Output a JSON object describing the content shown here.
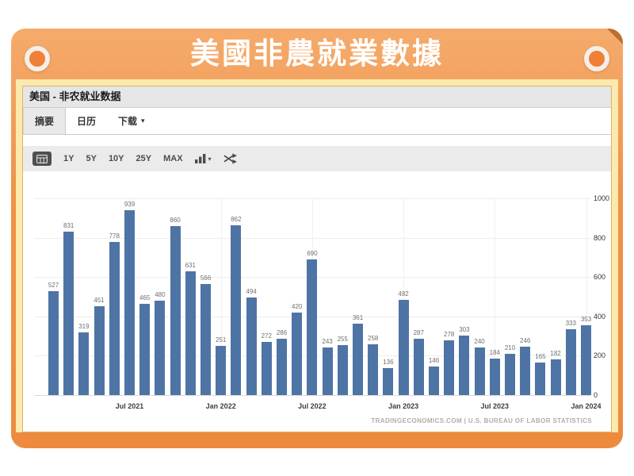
{
  "frame": {
    "title": "美國非農就業數據",
    "accent_color": "#ee8a3e",
    "mat_color": "#fbe9ad"
  },
  "panel": {
    "header": "美国 - 非农就业数据",
    "tabs": [
      {
        "label": "摘要",
        "active": true
      },
      {
        "label": "日历",
        "active": false
      },
      {
        "label": "下载",
        "active": false,
        "caret": "▾"
      }
    ],
    "toolbar": {
      "ranges": [
        "1Y",
        "5Y",
        "10Y",
        "25Y",
        "MAX"
      ],
      "icons": [
        "calendar-icon",
        "bar-chart-type-icon",
        "chart-type-caret-icon",
        "compare-shuffle-icon"
      ],
      "chart_type_caret": "▾"
    }
  },
  "chart_data": {
    "type": "bar",
    "title": "美国 - 非农就业数据",
    "values": [
      527,
      831,
      319,
      451,
      778,
      939,
      465,
      480,
      860,
      631,
      566,
      251,
      862,
      494,
      272,
      286,
      420,
      690,
      243,
      255,
      361,
      258,
      136,
      482,
      287,
      146,
      278,
      303,
      240,
      184,
      210,
      246,
      165,
      182,
      333,
      353
    ],
    "data_labels_shown": true,
    "x_tick_labels": [
      "Jul 2021",
      "Jan 2022",
      "Jul 2022",
      "Jan 2023",
      "Jul 2023",
      "Jan 2024"
    ],
    "x_tick_bar_indices": [
      5,
      11,
      17,
      23,
      29,
      35
    ],
    "y_ticks": [
      0,
      200,
      400,
      600,
      800,
      1000
    ],
    "ylim": [
      0,
      1000
    ],
    "y_axis_side": "right",
    "grid": true,
    "bar_color": "#4e74a6",
    "source_credit": "TRADINGECONOMICS.COM | U.S. BUREAU OF LABOR STATISTICS"
  }
}
